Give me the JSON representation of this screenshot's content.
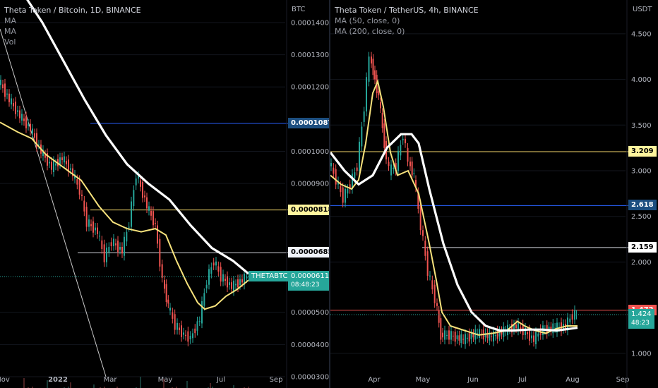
{
  "chart_data": [
    {
      "type": "line",
      "title": "Theta Token / Bitcoin, 1D, BINANCE",
      "indicators": [
        "MA",
        "MA",
        "Vol"
      ],
      "currency": "BTC",
      "y_ticks": [
        "0.0001400",
        "0.0001300",
        "0.0001200",
        "0.0001000",
        "0.0000900",
        "0.0000500",
        "0.0000400",
        "0.0000300"
      ],
      "x_ticks": [
        "Nov",
        "2022",
        "Mar",
        "May",
        "Jul",
        "Sep"
      ],
      "ylim": [
        2.65e-05,
        0.000147
      ],
      "price": [
        [
          0,
          0.000122
        ],
        [
          15,
          0.000116
        ],
        [
          30,
          0.000111
        ],
        [
          45,
          0.000107
        ],
        [
          60,
          0.0001
        ],
        [
          75,
          9.5e-05
        ],
        [
          90,
          9.8e-05
        ],
        [
          105,
          9.3e-05
        ],
        [
          115,
          8.8e-05
        ],
        [
          125,
          7.8e-05
        ],
        [
          140,
          7.5e-05
        ],
        [
          150,
          6.7e-05
        ],
        [
          160,
          7.2e-05
        ],
        [
          175,
          6.9e-05
        ],
        [
          185,
          7.8e-05
        ],
        [
          195,
          9.3e-05
        ],
        [
          210,
          8.3e-05
        ],
        [
          222,
          7.7e-05
        ],
        [
          232,
          6e-05
        ],
        [
          240,
          5.2e-05
        ],
        [
          250,
          4.6e-05
        ],
        [
          262,
          4.3e-05
        ],
        [
          272,
          4.2e-05
        ],
        [
          285,
          4.8e-05
        ],
        [
          295,
          6e-05
        ],
        [
          305,
          6.6e-05
        ],
        [
          315,
          6.1e-05
        ],
        [
          330,
          5.8e-05
        ],
        [
          345,
          6e-05
        ],
        [
          352,
          6.11e-05
        ]
      ],
      "ma_white": [
        [
          0,
          0.000152
        ],
        [
          30,
          0.00015
        ],
        [
          60,
          0.00014
        ],
        [
          90,
          0.000128
        ],
        [
          120,
          0.000116
        ],
        [
          150,
          0.000105
        ],
        [
          180,
          9.6e-05
        ],
        [
          210,
          9e-05
        ],
        [
          240,
          8.5e-05
        ],
        [
          270,
          7.7e-05
        ],
        [
          300,
          7e-05
        ],
        [
          330,
          6.6e-05
        ],
        [
          352,
          6.2e-05
        ]
      ],
      "ma_yellow": [
        [
          0,
          0.000109
        ],
        [
          25,
          0.000106
        ],
        [
          45,
          0.000104
        ],
        [
          65,
          9.9e-05
        ],
        [
          90,
          9.5e-05
        ],
        [
          115,
          9.1e-05
        ],
        [
          140,
          8.3e-05
        ],
        [
          160,
          7.8e-05
        ],
        [
          180,
          7.6e-05
        ],
        [
          200,
          7.5e-05
        ],
        [
          220,
          7.6e-05
        ],
        [
          235,
          7.4e-05
        ],
        [
          250,
          6.6e-05
        ],
        [
          265,
          5.9e-05
        ],
        [
          280,
          5.3e-05
        ],
        [
          290,
          5.1e-05
        ],
        [
          305,
          5.2e-05
        ],
        [
          320,
          5.5e-05
        ],
        [
          335,
          5.7e-05
        ],
        [
          352,
          6e-05
        ]
      ],
      "trend_line": [
        [
          0,
          0.000138
        ],
        [
          150,
          3e-05
        ]
      ],
      "hlines": [
        {
          "value": 0.0001087,
          "x_start": 128,
          "color": "#2962ff",
          "label": "0.0001087",
          "label_bg": "#1c4e80",
          "label_fg": "#ffffff"
        },
        {
          "value": 8.18e-05,
          "x_start": 128,
          "color": "#f2d56a",
          "label": "0.0000818",
          "label_bg": "#fff59d",
          "label_fg": "#000000"
        },
        {
          "value": 6.85e-05,
          "x_start": 110,
          "color": "#d1d4dc",
          "label": "0.0000685",
          "label_bg": "#f0f3fa",
          "label_fg": "#000000"
        }
      ],
      "last_price": {
        "symbol": "THETABTC",
        "price": "0.0000611",
        "countdown": "08:48:23",
        "value": 6.11e-05,
        "bg": "#26a69a"
      }
    },
    {
      "type": "line",
      "title": "Theta Token / TetherUS, 4h, BINANCE",
      "indicators": [
        "MA (50, close, 0)",
        "MA (200, close, 0)"
      ],
      "currency": "USDT",
      "y_ticks": [
        "4.500",
        "4.000",
        "3.500",
        "3.000",
        "2.500",
        "2.000",
        "1.000"
      ],
      "x_ticks": [
        "Apr",
        "May",
        "Jun",
        "Jul",
        "Aug",
        "Sep"
      ],
      "ylim": [
        0.62,
        4.87
      ],
      "price": [
        [
          0,
          3.1
        ],
        [
          10,
          2.9
        ],
        [
          20,
          2.7
        ],
        [
          30,
          2.85
        ],
        [
          40,
          3.05
        ],
        [
          50,
          3.7
        ],
        [
          57,
          4.25
        ],
        [
          62,
          4.1
        ],
        [
          70,
          3.8
        ],
        [
          78,
          3.3
        ],
        [
          85,
          3.0
        ],
        [
          95,
          3.05
        ],
        [
          105,
          3.4
        ],
        [
          112,
          3.1
        ],
        [
          120,
          2.95
        ],
        [
          130,
          2.4
        ],
        [
          140,
          1.9
        ],
        [
          150,
          1.6
        ],
        [
          158,
          1.2
        ],
        [
          170,
          1.2
        ],
        [
          190,
          1.15
        ],
        [
          210,
          1.22
        ],
        [
          230,
          1.18
        ],
        [
          250,
          1.25
        ],
        [
          265,
          1.3
        ],
        [
          275,
          1.25
        ],
        [
          290,
          1.15
        ],
        [
          300,
          1.25
        ],
        [
          320,
          1.28
        ],
        [
          335,
          1.3
        ],
        [
          345,
          1.42
        ],
        [
          350,
          1.424
        ]
      ],
      "ma_yellow": [
        [
          0,
          2.95
        ],
        [
          15,
          2.85
        ],
        [
          30,
          2.8
        ],
        [
          40,
          2.9
        ],
        [
          50,
          3.3
        ],
        [
          60,
          3.85
        ],
        [
          67,
          3.98
        ],
        [
          75,
          3.7
        ],
        [
          85,
          3.2
        ],
        [
          95,
          2.95
        ],
        [
          110,
          3.0
        ],
        [
          125,
          2.75
        ],
        [
          140,
          2.2
        ],
        [
          150,
          1.8
        ],
        [
          158,
          1.45
        ],
        [
          170,
          1.3
        ],
        [
          190,
          1.25
        ],
        [
          210,
          1.2
        ],
        [
          230,
          1.22
        ],
        [
          250,
          1.25
        ],
        [
          265,
          1.35
        ],
        [
          275,
          1.3
        ],
        [
          290,
          1.25
        ],
        [
          305,
          1.22
        ],
        [
          320,
          1.27
        ],
        [
          335,
          1.3
        ],
        [
          350,
          1.3
        ]
      ],
      "ma_white": [
        [
          0,
          3.2
        ],
        [
          20,
          3.0
        ],
        [
          40,
          2.85
        ],
        [
          60,
          2.95
        ],
        [
          80,
          3.25
        ],
        [
          100,
          3.4
        ],
        [
          115,
          3.4
        ],
        [
          125,
          3.3
        ],
        [
          140,
          2.8
        ],
        [
          160,
          2.2
        ],
        [
          180,
          1.75
        ],
        [
          200,
          1.45
        ],
        [
          220,
          1.3
        ],
        [
          240,
          1.25
        ],
        [
          260,
          1.25
        ],
        [
          280,
          1.26
        ],
        [
          300,
          1.26
        ],
        [
          320,
          1.25
        ],
        [
          340,
          1.27
        ],
        [
          350,
          1.28
        ]
      ],
      "hlines": [
        {
          "value": 3.209,
          "x_start": 0,
          "color": "#f2d56a",
          "label": "3.209",
          "label_bg": "#fff59d",
          "label_fg": "#000000"
        },
        {
          "value": 2.618,
          "x_start": 0,
          "color": "#2962ff",
          "label": "2.618",
          "label_bg": "#1c4e80",
          "label_fg": "#ffffff"
        },
        {
          "value": 2.159,
          "x_start": 130,
          "color": "#d1d4dc",
          "label": "2.159",
          "label_bg": "#ffffff",
          "label_fg": "#000000"
        },
        {
          "value": 1.472,
          "x_start": 0,
          "color": "#ef5350",
          "label": "1.472",
          "label_bg": "#ef5350",
          "label_fg": "#ffffff"
        }
      ],
      "last_price": {
        "price": "1.424",
        "countdown": "48:23",
        "value": 1.424,
        "bg": "#26a69a"
      }
    }
  ]
}
